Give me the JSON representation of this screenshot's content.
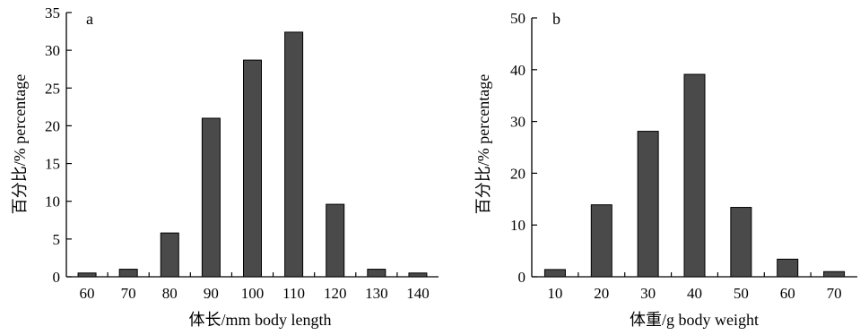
{
  "colors": {
    "bar_fill": "#4a4a4a",
    "bar_stroke": "#000000",
    "axis": "#000000"
  },
  "chart_data": [
    {
      "type": "bar",
      "panel_label": "a",
      "title": "",
      "categories": [
        "60",
        "70",
        "80",
        "90",
        "100",
        "110",
        "120",
        "130",
        "140"
      ],
      "values": [
        0.5,
        1.0,
        5.8,
        21.0,
        28.7,
        32.4,
        9.6,
        1.0,
        0.5
      ],
      "xlabel": "体长/mm body length",
      "ylabel": "百分比/% percentage",
      "ylim": [
        0,
        35
      ],
      "yticks": [
        "0",
        "5",
        "10",
        "15",
        "20",
        "25",
        "30",
        "35"
      ],
      "grid": false
    },
    {
      "type": "bar",
      "panel_label": "b",
      "title": "",
      "categories": [
        "10",
        "20",
        "30",
        "40",
        "50",
        "60",
        "70"
      ],
      "values": [
        1.4,
        13.9,
        28.1,
        39.1,
        13.4,
        3.4,
        1.0
      ],
      "xlabel": "体重/g body weight",
      "ylabel": "百分比/% percentage",
      "ylim": [
        0,
        50
      ],
      "yticks": [
        "0",
        "10",
        "20",
        "30",
        "40",
        "50"
      ],
      "grid": false
    }
  ]
}
